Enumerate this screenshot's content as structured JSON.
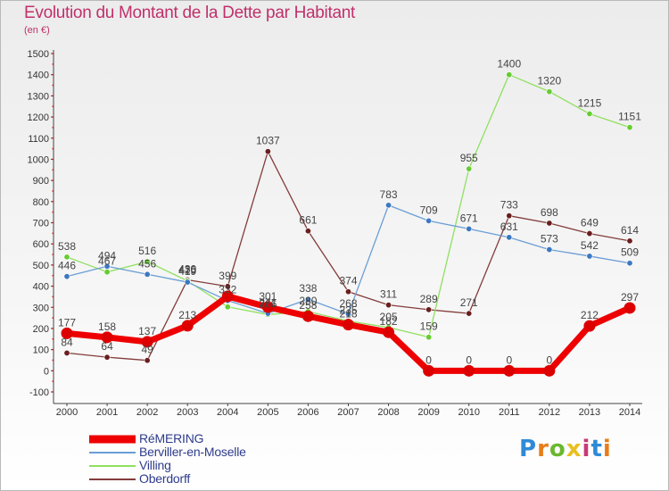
{
  "title": "Evolution du Montant de la Dette par Habitant",
  "unit": "(en €)",
  "brand": {
    "text": "Proxiti",
    "colors": [
      "#2e8ad8",
      "#e87d18",
      "#6ab82e",
      "#e8c020",
      "#c83a78",
      "#2e8ad8",
      "#e87d18"
    ]
  },
  "chart_data": {
    "type": "line",
    "categories": [
      "2000",
      "2001",
      "2002",
      "2003",
      "2004",
      "2005",
      "2006",
      "2007",
      "2008",
      "2009",
      "2010",
      "2011",
      "2012",
      "2013",
      "2014"
    ],
    "ylim": [
      -100,
      1500
    ],
    "yticks": [
      -100,
      0,
      100,
      200,
      300,
      400,
      500,
      600,
      700,
      800,
      900,
      1000,
      1100,
      1200,
      1300,
      1400,
      1500
    ],
    "grid": false,
    "legend": "bottom-left",
    "series": [
      {
        "name": "RéMERING",
        "color": "#ee0000",
        "marker": "#dd0000",
        "values": [
          177,
          158,
          137,
          213,
          352,
          301,
          258,
          218,
          182,
          0,
          0,
          0,
          0,
          212,
          297
        ],
        "labels": [
          "177",
          "158",
          "137",
          "213",
          "",
          "301",
          "258",
          "218",
          "182",
          "0",
          "0",
          "0",
          "0",
          "212",
          "297"
        ]
      },
      {
        "name": "Berviller-en-Moselle",
        "color": "#6a9ed6",
        "marker": "#3c78c0",
        "values": [
          446,
          494,
          456,
          419,
          332,
          271,
          338,
          268,
          783,
          709,
          671,
          631,
          573,
          542,
          509
        ],
        "labels": [
          "446",
          "494",
          "456",
          "419",
          "332",
          "271",
          "338",
          "268",
          "783",
          "709",
          "671",
          "631",
          "573",
          "542",
          "509"
        ]
      },
      {
        "name": "Villing",
        "color": "#90e060",
        "marker": "#66cc33",
        "values": [
          538,
          467,
          516,
          425,
          302,
          266,
          280,
          235,
          205,
          159,
          955,
          1400,
          1320,
          1215,
          1151
        ],
        "labels": [
          "538",
          "467",
          "516",
          "425",
          "",
          "266",
          "280",
          "235",
          "205",
          "159",
          "955",
          "1400",
          "1320",
          "1215",
          "1151"
        ]
      },
      {
        "name": "Oberdorff",
        "color": "#843c3c",
        "marker": "#6a1e1e",
        "values": [
          84,
          64,
          49,
          430,
          399,
          1037,
          661,
          374,
          311,
          289,
          271,
          733,
          698,
          649,
          614
        ],
        "labels": [
          "84",
          "64",
          "49",
          "430",
          "399",
          "1037",
          "661",
          "374",
          "311",
          "289",
          "271",
          "733",
          "698",
          "649",
          "614"
        ]
      }
    ]
  }
}
